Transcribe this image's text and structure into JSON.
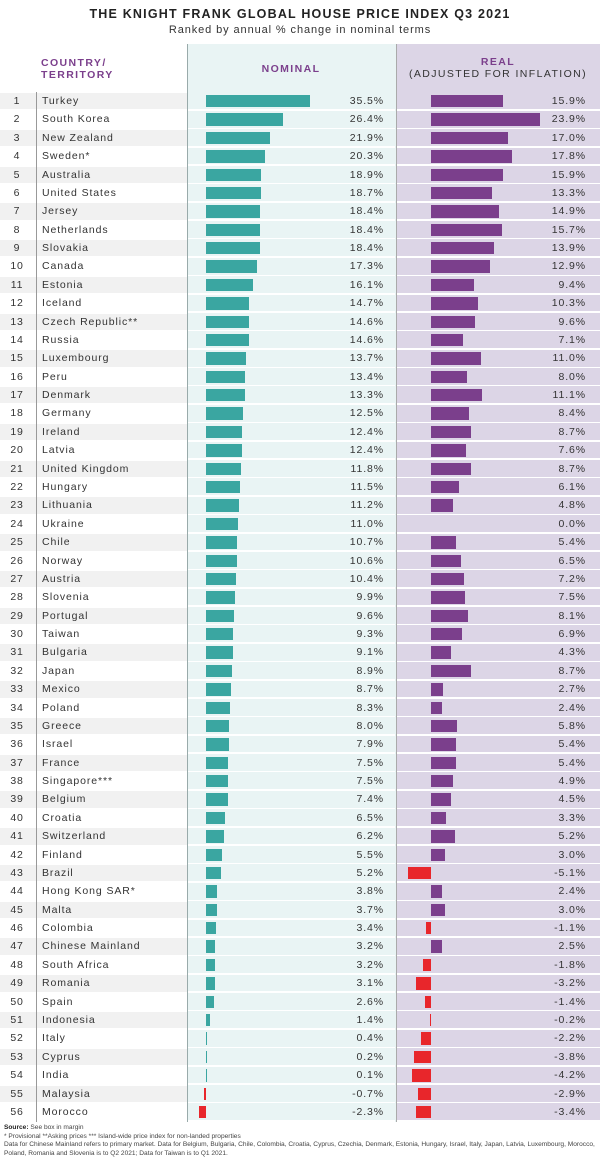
{
  "chart_data": {
    "type": "bar",
    "title": "THE KNIGHT FRANK GLOBAL HOUSE PRICE INDEX Q3 2021",
    "subtitle": "Ranked by annual % change in nominal terms",
    "columns": {
      "country": "COUNTRY/ TERRITORY",
      "country_line1": "COUNTRY/",
      "country_line2": "TERRITORY",
      "nominal": "NOMINAL",
      "real_line1": "REAL",
      "real_line2": "(ADJUSTED FOR INFLATION)"
    },
    "unit": "%",
    "series": [
      {
        "name": "Nominal",
        "color": "#3aa6a1"
      },
      {
        "name": "Real (adjusted for inflation)",
        "color": "#7b3f8c",
        "negative_color": "#e8262b"
      }
    ],
    "rows": [
      {
        "rank": "1",
        "country": "Turkey",
        "nominal": 35.5,
        "real": 15.9
      },
      {
        "rank": "2",
        "country": "South Korea",
        "nominal": 26.4,
        "real": 23.9
      },
      {
        "rank": "3",
        "country": "New Zealand",
        "nominal": 21.9,
        "real": 17.0
      },
      {
        "rank": "4",
        "country": "Sweden*",
        "nominal": 20.3,
        "real": 17.8
      },
      {
        "rank": "5",
        "country": "Australia",
        "nominal": 18.9,
        "real": 15.9
      },
      {
        "rank": "6",
        "country": "United States",
        "nominal": 18.7,
        "real": 13.3
      },
      {
        "rank": "7",
        "country": "Jersey",
        "nominal": 18.4,
        "real": 14.9
      },
      {
        "rank": "8",
        "country": "Netherlands",
        "nominal": 18.4,
        "real": 15.7
      },
      {
        "rank": "9",
        "country": "Slovakia",
        "nominal": 18.4,
        "real": 13.9
      },
      {
        "rank": "10",
        "country": "Canada",
        "nominal": 17.3,
        "real": 12.9
      },
      {
        "rank": "11",
        "country": "Estonia",
        "nominal": 16.1,
        "real": 9.4
      },
      {
        "rank": "12",
        "country": "Iceland",
        "nominal": 14.7,
        "real": 10.3
      },
      {
        "rank": "13",
        "country": "Czech Republic**",
        "nominal": 14.6,
        "real": 9.6
      },
      {
        "rank": "14",
        "country": "Russia",
        "nominal": 14.6,
        "real": 7.1
      },
      {
        "rank": "15",
        "country": "Luxembourg",
        "nominal": 13.7,
        "real": 11.0
      },
      {
        "rank": "16",
        "country": "Peru",
        "nominal": 13.4,
        "real": 8.0
      },
      {
        "rank": "17",
        "country": "Denmark",
        "nominal": 13.3,
        "real": 11.1
      },
      {
        "rank": "18",
        "country": "Germany",
        "nominal": 12.5,
        "real": 8.4
      },
      {
        "rank": "19",
        "country": "Ireland",
        "nominal": 12.4,
        "real": 8.7
      },
      {
        "rank": "20",
        "country": "Latvia",
        "nominal": 12.4,
        "real": 7.6
      },
      {
        "rank": "21",
        "country": "United Kingdom",
        "nominal": 11.8,
        "real": 8.7
      },
      {
        "rank": "22",
        "country": "Hungary",
        "nominal": 11.5,
        "real": 6.1
      },
      {
        "rank": "23",
        "country": "Lithuania",
        "nominal": 11.2,
        "real": 4.8
      },
      {
        "rank": "24",
        "country": "Ukraine",
        "nominal": 11.0,
        "real": 0.0
      },
      {
        "rank": "25",
        "country": "Chile",
        "nominal": 10.7,
        "real": 5.4
      },
      {
        "rank": "26",
        "country": "Norway",
        "nominal": 10.6,
        "real": 6.5
      },
      {
        "rank": "27",
        "country": "Austria",
        "nominal": 10.4,
        "real": 7.2
      },
      {
        "rank": "28",
        "country": "Slovenia",
        "nominal": 9.9,
        "real": 7.5
      },
      {
        "rank": "29",
        "country": "Portugal",
        "nominal": 9.6,
        "real": 8.1
      },
      {
        "rank": "30",
        "country": "Taiwan",
        "nominal": 9.3,
        "real": 6.9
      },
      {
        "rank": "31",
        "country": "Bulgaria",
        "nominal": 9.1,
        "real": 4.3
      },
      {
        "rank": "32",
        "country": "Japan",
        "nominal": 8.9,
        "real": 8.7
      },
      {
        "rank": "33",
        "country": "Mexico",
        "nominal": 8.7,
        "real": 2.7
      },
      {
        "rank": "34",
        "country": "Poland",
        "nominal": 8.3,
        "real": 2.4
      },
      {
        "rank": "35",
        "country": "Greece",
        "nominal": 8.0,
        "real": 5.8
      },
      {
        "rank": "36",
        "country": "Israel",
        "nominal": 7.9,
        "real": 5.4
      },
      {
        "rank": "37",
        "country": "France",
        "nominal": 7.5,
        "real": 5.4
      },
      {
        "rank": "38",
        "country": "Singapore***",
        "nominal": 7.5,
        "real": 4.9
      },
      {
        "rank": "39",
        "country": "Belgium",
        "nominal": 7.4,
        "real": 4.5
      },
      {
        "rank": "40",
        "country": "Croatia",
        "nominal": 6.5,
        "real": 3.3
      },
      {
        "rank": "41",
        "country": "Switzerland",
        "nominal": 6.2,
        "real": 5.2
      },
      {
        "rank": "42",
        "country": "Finland",
        "nominal": 5.5,
        "real": 3.0
      },
      {
        "rank": "43",
        "country": "Brazil",
        "nominal": 5.2,
        "real": -5.1
      },
      {
        "rank": "44",
        "country": "Hong Kong SAR*",
        "nominal": 3.8,
        "real": 2.4
      },
      {
        "rank": "45",
        "country": "Malta",
        "nominal": 3.7,
        "real": 3.0
      },
      {
        "rank": "46",
        "country": "Colombia",
        "nominal": 3.4,
        "real": -1.1
      },
      {
        "rank": "47",
        "country": "Chinese Mainland",
        "nominal": 3.2,
        "real": 2.5
      },
      {
        "rank": "48",
        "country": "South Africa",
        "nominal": 3.2,
        "real": -1.8
      },
      {
        "rank": "49",
        "country": "Romania",
        "nominal": 3.1,
        "real": -3.2
      },
      {
        "rank": "50",
        "country": "Spain",
        "nominal": 2.6,
        "real": -1.4
      },
      {
        "rank": "51",
        "country": "Indonesia",
        "nominal": 1.4,
        "real": -0.2
      },
      {
        "rank": "52",
        "country": "Italy",
        "nominal": 0.4,
        "real": -2.2
      },
      {
        "rank": "53",
        "country": "Cyprus",
        "nominal": 0.2,
        "real": -3.8
      },
      {
        "rank": "54",
        "country": "India",
        "nominal": 0.1,
        "real": -4.2
      },
      {
        "rank": "55",
        "country": "Malaysia",
        "nominal": -0.7,
        "real": -2.9
      },
      {
        "rank": "56",
        "country": "Morocco",
        "nominal": -2.3,
        "real": -3.4
      }
    ]
  },
  "footer": {
    "source_label": "Source:",
    "source_text": "See box in margin",
    "notes": "* Provisional **Asking prices *** Island-wide price index for non-landed properties",
    "data_note": "Data for Chinese Mainland refers to primary market. Data for Belgium, Bulgaria, Chile, Colombia, Croatia, Cyprus, Czechia, Denmark, Estonia, Hungary, Israel, Italy, Japan, Latvia, Luxembourg, Morocco, Poland, Romania and Slovenia is to Q2 2021; Data for Taiwan is to Q1 2021."
  }
}
